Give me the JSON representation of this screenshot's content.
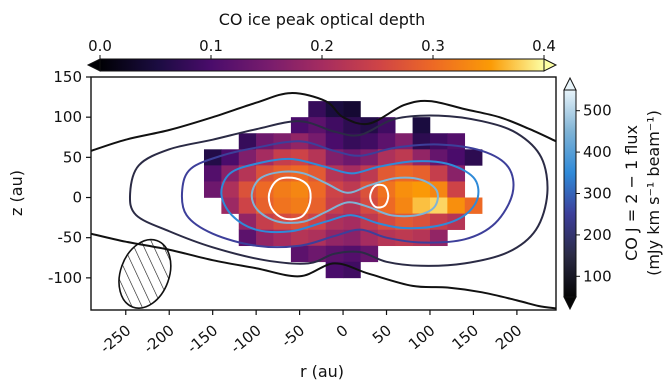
{
  "chart_data": {
    "type": "heatmap",
    "title": "CO ice peak optical depth",
    "xlabel": "r (au)",
    "ylabel": "z (au)",
    "xlim": [
      -290,
      245
    ],
    "ylim": [
      -140,
      150
    ],
    "x_ticks": [
      -250,
      -200,
      -150,
      -100,
      -50,
      0,
      50,
      100,
      150,
      200
    ],
    "x_tick_labels": [
      "-250",
      "-200",
      "-150",
      "-100",
      "-50",
      "0",
      "50",
      "100",
      "150",
      "200"
    ],
    "y_ticks": [
      150,
      100,
      50,
      0,
      -50,
      -100
    ],
    "y_tick_labels": [
      "150",
      "100",
      "50",
      "0",
      "-50",
      "-100"
    ],
    "colorbar_top": {
      "label": "CO ice peak optical depth",
      "colormap": "inferno",
      "range": [
        0.0,
        0.4
      ],
      "ticks": [
        "0.0",
        "0.1",
        "0.2",
        "0.3",
        "0.4"
      ],
      "extend": "both"
    },
    "colorbar_right": {
      "label_line1": "CO J = 2 − 1 flux",
      "label_line2": "(mJy km s⁻¹ beam⁻¹)",
      "colormap": "blue-contour",
      "range": [
        50,
        550
      ],
      "ticks": [
        "100",
        "200",
        "300",
        "400",
        "500"
      ],
      "extend": "both"
    },
    "pixel_size_au": 20,
    "columns_r_au": [
      -150,
      -130,
      -110,
      -90,
      -70,
      -50,
      -30,
      -10,
      10,
      30,
      50,
      70,
      90,
      110,
      130,
      150
    ],
    "rows_z_au": [
      110,
      90,
      70,
      50,
      30,
      10,
      -10,
      -30,
      -50,
      -70,
      -90
    ],
    "tau_grid": [
      [
        null,
        null,
        null,
        null,
        null,
        null,
        0.08,
        0.05,
        0.04,
        null,
        null,
        null,
        null,
        null,
        null,
        null
      ],
      [
        null,
        null,
        null,
        null,
        null,
        0.1,
        0.12,
        0.09,
        0.07,
        0.06,
        0.09,
        null,
        0.05,
        null,
        null,
        null
      ],
      [
        null,
        null,
        0.08,
        0.14,
        0.16,
        0.18,
        0.15,
        0.1,
        0.08,
        0.09,
        0.12,
        0.16,
        0.07,
        0.09,
        0.11,
        null
      ],
      [
        0.06,
        0.1,
        0.16,
        0.2,
        0.24,
        0.25,
        0.22,
        0.16,
        0.14,
        0.16,
        0.21,
        0.23,
        0.18,
        0.13,
        0.1,
        0.07
      ],
      [
        0.11,
        0.17,
        0.22,
        0.27,
        0.29,
        0.3,
        0.28,
        0.22,
        0.2,
        0.23,
        0.28,
        0.3,
        0.29,
        0.24,
        0.17,
        null
      ],
      [
        0.14,
        0.21,
        0.27,
        0.3,
        0.32,
        0.33,
        0.3,
        0.25,
        0.23,
        0.27,
        0.31,
        0.34,
        0.35,
        0.33,
        0.25,
        null
      ],
      [
        null,
        0.19,
        0.25,
        0.29,
        0.31,
        0.32,
        0.29,
        0.24,
        0.22,
        0.26,
        0.3,
        0.33,
        0.37,
        0.38,
        0.34,
        0.3
      ],
      [
        null,
        null,
        0.18,
        0.24,
        0.26,
        0.27,
        0.25,
        0.21,
        0.2,
        0.23,
        0.26,
        0.28,
        0.27,
        0.24,
        0.22,
        null
      ],
      [
        null,
        null,
        0.12,
        0.18,
        0.2,
        0.22,
        0.21,
        0.18,
        0.17,
        0.2,
        0.22,
        0.23,
        0.22,
        0.18,
        null,
        null
      ],
      [
        null,
        null,
        null,
        null,
        null,
        0.12,
        0.14,
        0.12,
        0.11,
        0.13,
        null,
        null,
        null,
        null,
        null,
        null
      ],
      [
        null,
        null,
        null,
        null,
        null,
        null,
        null,
        0.1,
        0.09,
        null,
        null,
        null,
        null,
        null,
        null,
        null
      ]
    ],
    "co_flux_contours": [
      {
        "level": 50,
        "color": "#111111",
        "points": [
          [
            -290,
            58
          ],
          [
            -250,
            72
          ],
          [
            -200,
            84
          ],
          [
            -150,
            100
          ],
          [
            -100,
            118
          ],
          [
            -60,
            130
          ],
          [
            -20,
            120
          ],
          [
            0,
            100
          ],
          [
            30,
            92
          ],
          [
            70,
            115
          ],
          [
            100,
            120
          ],
          [
            140,
            110
          ],
          [
            180,
            100
          ],
          [
            215,
            85
          ],
          [
            245,
            70
          ]
        ]
      },
      {
        "level": 50,
        "color": "#111111",
        "points": [
          [
            -290,
            -45
          ],
          [
            -250,
            -55
          ],
          [
            -200,
            -65
          ],
          [
            -150,
            -78
          ],
          [
            -100,
            -88
          ],
          [
            -50,
            -98
          ],
          [
            -10,
            -82
          ],
          [
            30,
            -95
          ],
          [
            80,
            -110
          ],
          [
            120,
            -112
          ],
          [
            160,
            -118
          ],
          [
            200,
            -128
          ],
          [
            225,
            -135
          ],
          [
            245,
            -138
          ]
        ]
      },
      {
        "level": 100,
        "color": "#2b2b45",
        "closed": true,
        "points": [
          [
            -245,
            5
          ],
          [
            -235,
            40
          ],
          [
            -200,
            60
          ],
          [
            -150,
            72
          ],
          [
            -100,
            85
          ],
          [
            -50,
            95
          ],
          [
            -10,
            82
          ],
          [
            20,
            78
          ],
          [
            60,
            98
          ],
          [
            110,
            102
          ],
          [
            160,
            95
          ],
          [
            200,
            80
          ],
          [
            228,
            50
          ],
          [
            235,
            5
          ],
          [
            222,
            -40
          ],
          [
            190,
            -68
          ],
          [
            140,
            -82
          ],
          [
            90,
            -85
          ],
          [
            50,
            -80
          ],
          [
            20,
            -68
          ],
          [
            -10,
            -70
          ],
          [
            -40,
            -82
          ],
          [
            -90,
            -78
          ],
          [
            -150,
            -62
          ],
          [
            -200,
            -42
          ],
          [
            -238,
            -22
          ]
        ]
      },
      {
        "level": 200,
        "color": "#3d3f9a",
        "closed": true,
        "points": [
          [
            -185,
            10
          ],
          [
            -175,
            36
          ],
          [
            -140,
            52
          ],
          [
            -100,
            62
          ],
          [
            -50,
            70
          ],
          [
            -10,
            58
          ],
          [
            20,
            52
          ],
          [
            60,
            62
          ],
          [
            110,
            66
          ],
          [
            160,
            58
          ],
          [
            190,
            38
          ],
          [
            195,
            5
          ],
          [
            175,
            -32
          ],
          [
            140,
            -52
          ],
          [
            90,
            -56
          ],
          [
            50,
            -50
          ],
          [
            20,
            -40
          ],
          [
            -10,
            -48
          ],
          [
            -50,
            -60
          ],
          [
            -100,
            -60
          ],
          [
            -150,
            -45
          ],
          [
            -180,
            -22
          ]
        ]
      },
      {
        "level": 300,
        "color": "#2f8ad8",
        "closed": true,
        "points": [
          [
            -140,
            5
          ],
          [
            -130,
            30
          ],
          [
            -100,
            42
          ],
          [
            -60,
            48
          ],
          [
            -20,
            38
          ],
          [
            10,
            30
          ],
          [
            40,
            38
          ],
          [
            80,
            45
          ],
          [
            120,
            42
          ],
          [
            150,
            25
          ],
          [
            155,
            0
          ],
          [
            140,
            -22
          ],
          [
            110,
            -35
          ],
          [
            70,
            -38
          ],
          [
            40,
            -32
          ],
          [
            10,
            -22
          ],
          [
            -20,
            -30
          ],
          [
            -60,
            -42
          ],
          [
            -100,
            -40
          ],
          [
            -128,
            -22
          ]
        ]
      },
      {
        "level": 400,
        "color": "#7fb3d5",
        "closed": true,
        "points": [
          [
            -105,
            4
          ],
          [
            -95,
            24
          ],
          [
            -70,
            32
          ],
          [
            -45,
            30
          ],
          [
            -20,
            18
          ],
          [
            5,
            6
          ],
          [
            30,
            15
          ],
          [
            60,
            24
          ],
          [
            90,
            22
          ],
          [
            108,
            8
          ],
          [
            105,
            -12
          ],
          [
            85,
            -22
          ],
          [
            55,
            -22
          ],
          [
            30,
            -12
          ],
          [
            5,
            -6
          ],
          [
            -20,
            -18
          ],
          [
            -45,
            -30
          ],
          [
            -75,
            -30
          ],
          [
            -98,
            -16
          ]
        ]
      },
      {
        "level": 500,
        "color": "#ffffff",
        "closed": true,
        "points": [
          [
            -85,
            5
          ],
          [
            -75,
            22
          ],
          [
            -55,
            24
          ],
          [
            -40,
            14
          ],
          [
            -38,
            -6
          ],
          [
            -48,
            -24
          ],
          [
            -68,
            -26
          ],
          [
            -82,
            -14
          ]
        ]
      },
      {
        "level": 500,
        "color": "#ffffff",
        "closed": true,
        "points": [
          [
            32,
            6
          ],
          [
            38,
            15
          ],
          [
            48,
            14
          ],
          [
            52,
            2
          ],
          [
            48,
            -10
          ],
          [
            38,
            -12
          ],
          [
            32,
            -4
          ]
        ]
      }
    ],
    "beam": {
      "center_r_au": -228,
      "center_z_au": -95,
      "major_au": 88,
      "minor_au": 56,
      "pa_deg": 20,
      "hatched": true
    }
  }
}
